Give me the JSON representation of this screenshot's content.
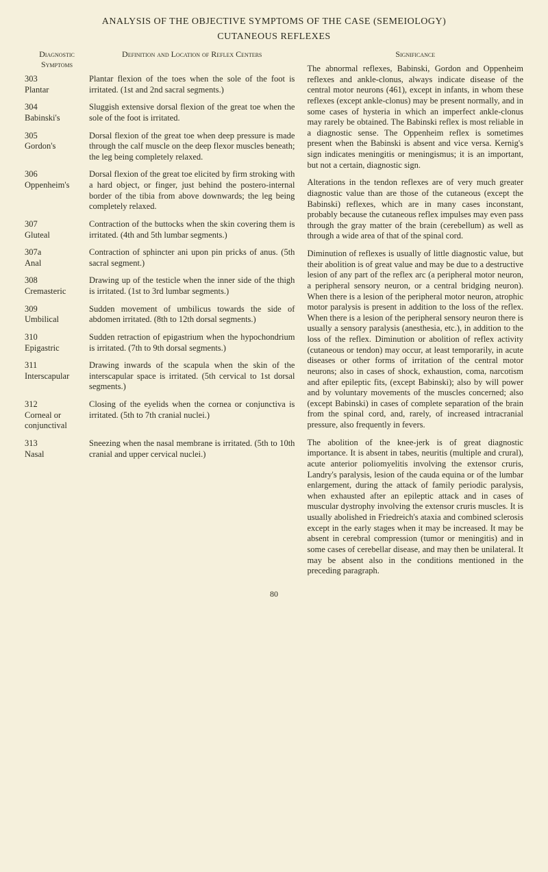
{
  "title": "ANALYSIS OF THE OBJECTIVE SYMPTOMS OF THE CASE (SEMEIOLOGY)",
  "subtitle": "CUTANEOUS REFLEXES",
  "headers": {
    "diagnostic": "Diagnostic Symptoms",
    "definition": "Definition and Location of Reflex Centers",
    "significance": "Significance"
  },
  "entries": [
    {
      "num": "303",
      "name": "Plantar",
      "def": "Plantar flexion of the toes when the sole of the foot is irritated. (1st and 2nd sacral segments.)"
    },
    {
      "num": "304",
      "name": "Babinski's",
      "def": "Sluggish extensive dorsal flexion of the great toe when the sole of the foot is irritated."
    },
    {
      "num": "305",
      "name": "Gordon's",
      "def": "Dorsal flexion of the great toe when deep pressure is made through the calf muscle on the deep flexor muscles beneath; the leg being completely relaxed."
    },
    {
      "num": "306",
      "name": "Oppenheim's",
      "def": "Dorsal flexion of the great toe elicited by firm stroking with a hard object, or finger, just behind the postero-internal border of the tibia from above downwards; the leg being completely relaxed."
    },
    {
      "num": "307",
      "name": "Gluteal",
      "def": "Contraction of the buttocks when the skin covering them is irritated. (4th and 5th lumbar segments.)"
    },
    {
      "num": "307a",
      "name": "Anal",
      "def": "Contraction of sphincter ani upon pin pricks of anus. (5th sacral segment.)"
    },
    {
      "num": "308",
      "name": "Cremasteric",
      "def": "Drawing up of the testicle when the inner side of the thigh is irritated. (1st to 3rd lumbar segments.)"
    },
    {
      "num": "309",
      "name": "Umbilical",
      "def": "Sudden movement of umbilicus towards the side of abdomen irritated. (8th to 12th dorsal segments.)"
    },
    {
      "num": "310",
      "name": "Epigastric",
      "def": "Sudden retraction of epigastrium when the hypochondrium is irritated. (7th to 9th dorsal segments.)"
    },
    {
      "num": "311",
      "name": "Interscapular",
      "def": "Drawing inwards of the scapula when the skin of the interscapular space is irritated. (5th cervical to 1st dorsal segments.)"
    },
    {
      "num": "312",
      "name": "Corneal or conjunctival",
      "def": "Closing of the eyelids when the cornea or conjunctiva is irritated. (5th to 7th cranial nuclei.)"
    },
    {
      "num": "313",
      "name": "Nasal",
      "def": "Sneezing when the nasal membrane is irritated. (5th to 10th cranial and upper cervical nuclei.)"
    }
  ],
  "significance": [
    "The abnormal reflexes, Babinski, Gordon and Oppenheim reflexes and ankle-clonus, always indicate disease of the central motor neurons (461), except in infants, in whom these reflexes (except ankle-clonus) may be present normally, and in some cases of hysteria in which an imperfect ankle-clonus may rarely be obtained. The Babinski reflex is most reliable in a diagnostic sense. The Oppenheim reflex is sometimes present when the Babinski is absent and vice versa. Kernig's sign indicates meningitis or meningismus; it is an important, but not a certain, diagnostic sign.",
    "Alterations in the tendon reflexes are of very much greater diagnostic value than are those of the cutaneous (except the Babinski) reflexes, which are in many cases inconstant, probably because the cutaneous reflex impulses may even pass through the gray matter of the brain (cerebellum) as well as through a wide area of that of the spinal cord.",
    "Diminution of reflexes is usually of little diagnostic value, but their abolition is of great value and may be due to a destructive lesion of any part of the reflex arc (a peripheral motor neuron, a peripheral sensory neuron, or a central bridging neuron). When there is a lesion of the peripheral motor neuron, atrophic motor paralysis is present in addition to the loss of the reflex. When there is a lesion of the peripheral sensory neuron there is usually a sensory paralysis (anesthesia, etc.), in addition to the loss of the reflex. Diminution or abolition of reflex activity (cutaneous or tendon) may occur, at least temporarily, in acute diseases or other forms of irritation of the central motor neurons; also in cases of shock, exhaustion, coma, narcotism and after epileptic fits, (except Babinski); also by will power and by voluntary movements of the muscles concerned; also (except Babinski) in cases of complete separation of the brain from the spinal cord, and, rarely, of increased intracranial pressure, also frequently in fevers.",
    "The abolition of the knee-jerk is of great diagnostic importance. It is absent in tabes, neuritis (multiple and crural), acute anterior poliomyelitis involving the extensor cruris, Landry's paralysis, lesion of the cauda equina or of the lumbar enlargement, during the attack of family periodic paralysis, when exhausted after an epileptic attack and in cases of muscular dystrophy involving the extensor cruris muscles. It is usually abolished in Friedreich's ataxia and combined sclerosis except in the early stages when it may be increased. It may be absent in cerebral compression (tumor or meningitis) and in some cases of cerebellar disease, and may then be unilateral. It may be absent also in the conditions mentioned in the preceding paragraph."
  ],
  "pagenum": "80"
}
